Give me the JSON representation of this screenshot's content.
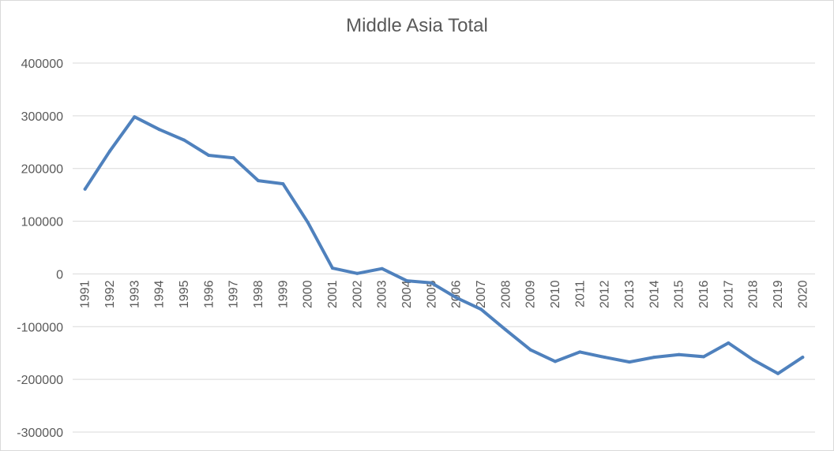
{
  "chart_data": {
    "type": "line",
    "title": "Middle Asia Total",
    "xlabel": "",
    "ylabel": "",
    "x": [
      "1991",
      "1992",
      "1993",
      "1994",
      "1995",
      "1996",
      "1997",
      "1998",
      "1999",
      "2000",
      "2001",
      "2002",
      "2003",
      "2004",
      "2005",
      "2006",
      "2007",
      "2008",
      "2009",
      "2010",
      "2011",
      "2012",
      "2013",
      "2014",
      "2015",
      "2016",
      "2017",
      "2018",
      "2019",
      "2020"
    ],
    "series": [
      {
        "color": "#4f81bd",
        "values": [
          161000,
          233000,
          298000,
          274000,
          254000,
          225000,
          220000,
          177000,
          171000,
          98000,
          11000,
          1000,
          10000,
          -13000,
          -17000,
          -45000,
          -67000,
          -106000,
          -144000,
          -166000,
          -148000,
          -158000,
          -167000,
          -158000,
          -153000,
          -157000,
          -131000,
          -163000,
          -189000,
          -158000
        ]
      }
    ],
    "ylim": [
      -300000,
      400000
    ],
    "yticks": [
      -300000,
      -200000,
      -100000,
      0,
      100000,
      200000,
      300000,
      400000
    ],
    "ytick_labels": [
      "-300000",
      "-200000",
      "-100000",
      "0",
      "100000",
      "200000",
      "300000",
      "400000"
    ],
    "grid": true,
    "legend": "none"
  }
}
